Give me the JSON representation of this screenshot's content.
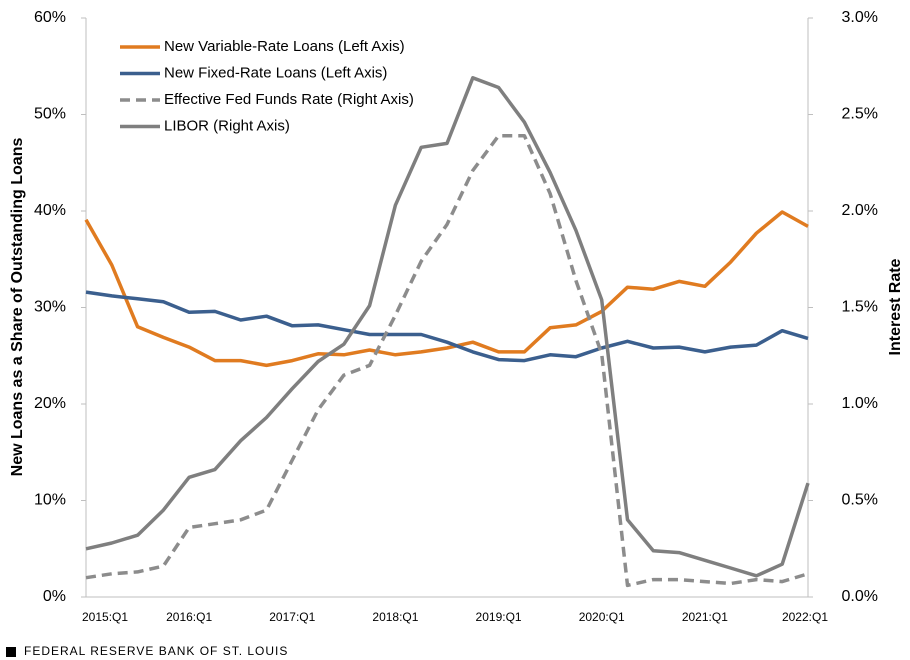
{
  "chart_data": {
    "type": "line",
    "ylabel": "New Loans as a Share of Outstanding Loans",
    "y2label": "Interest Rate",
    "source": "FEDERAL RESERVE BANK OF ST. LOUIS",
    "categories": [
      "2015:Q1",
      null,
      null,
      null,
      "2016:Q1",
      null,
      null,
      null,
      "2017:Q1",
      null,
      null,
      null,
      "2018:Q1",
      null,
      null,
      null,
      "2019:Q1",
      null,
      null,
      null,
      "2020:Q1",
      null,
      null,
      null,
      "2021:Q1",
      null,
      null,
      null,
      "2022:Q1"
    ],
    "ylim": [
      0,
      60
    ],
    "yticks": [
      {
        "value": 0,
        "label": "0%"
      },
      {
        "value": 10,
        "label": "10%"
      },
      {
        "value": 20,
        "label": "20%"
      },
      {
        "value": 30,
        "label": "30%"
      },
      {
        "value": 40,
        "label": "40%"
      },
      {
        "value": 50,
        "label": "50%"
      },
      {
        "value": 60,
        "label": "60%"
      }
    ],
    "y2lim": [
      0,
      3
    ],
    "y2ticks": [
      {
        "value": 0,
        "label": "0.0%"
      },
      {
        "value": 0.5,
        "label": "0.5%"
      },
      {
        "value": 1,
        "label": "1.0%"
      },
      {
        "value": 1.5,
        "label": "1.5%"
      },
      {
        "value": 2,
        "label": "2.0%"
      },
      {
        "value": 2.5,
        "label": "2.5%"
      },
      {
        "value": 3,
        "label": "3.0%"
      }
    ],
    "legend": "upper left",
    "series": [
      {
        "name": "New Variable-Rate Loans (Left Axis)",
        "color": "#e07b20",
        "style": "solid",
        "values": [
          39.1,
          34.4,
          28.0,
          26.9,
          25.9,
          24.5,
          24.5,
          24.0,
          24.5,
          25.2,
          25.1,
          25.6,
          25.1,
          25.4,
          25.8,
          26.4,
          25.4,
          25.4,
          27.9,
          28.2,
          29.6,
          32.1,
          31.9,
          32.7,
          32.2,
          34.7,
          37.7,
          39.9,
          38.4
        ]
      },
      {
        "name": "New Fixed-Rate Loans (Left Axis)",
        "color": "#3b5f8e",
        "style": "solid",
        "values": [
          31.6,
          31.2,
          30.9,
          30.6,
          29.5,
          29.6,
          28.7,
          29.1,
          28.1,
          28.2,
          27.7,
          27.2,
          27.2,
          27.2,
          26.4,
          25.4,
          24.6,
          24.5,
          25.1,
          24.9,
          25.8,
          26.5,
          25.8,
          25.9,
          25.4,
          25.9,
          26.1,
          27.6,
          26.8
        ]
      },
      {
        "name": "Effective Fed Funds Rate (Right Axis)",
        "color": "#8c8c8c",
        "style": "dashed",
        "axis": "y2",
        "values": [
          0.1,
          0.12,
          0.13,
          0.16,
          0.36,
          0.38,
          0.4,
          0.45,
          0.71,
          0.97,
          1.15,
          1.2,
          1.46,
          1.74,
          1.93,
          2.21,
          2.39,
          2.39,
          2.09,
          1.64,
          1.26,
          0.06,
          0.09,
          0.09,
          0.08,
          0.07,
          0.09,
          0.08,
          0.12
        ]
      },
      {
        "name": "LIBOR (Right Axis)",
        "color": "#7f7f7f",
        "style": "solid",
        "axis": "y2",
        "values": [
          0.25,
          0.28,
          0.32,
          0.45,
          0.62,
          0.66,
          0.81,
          0.93,
          1.08,
          1.22,
          1.31,
          1.51,
          2.03,
          2.33,
          2.35,
          2.69,
          2.64,
          2.46,
          2.2,
          1.9,
          1.54,
          0.4,
          0.24,
          0.23,
          0.19,
          0.15,
          0.11,
          0.17,
          0.59
        ]
      }
    ]
  }
}
